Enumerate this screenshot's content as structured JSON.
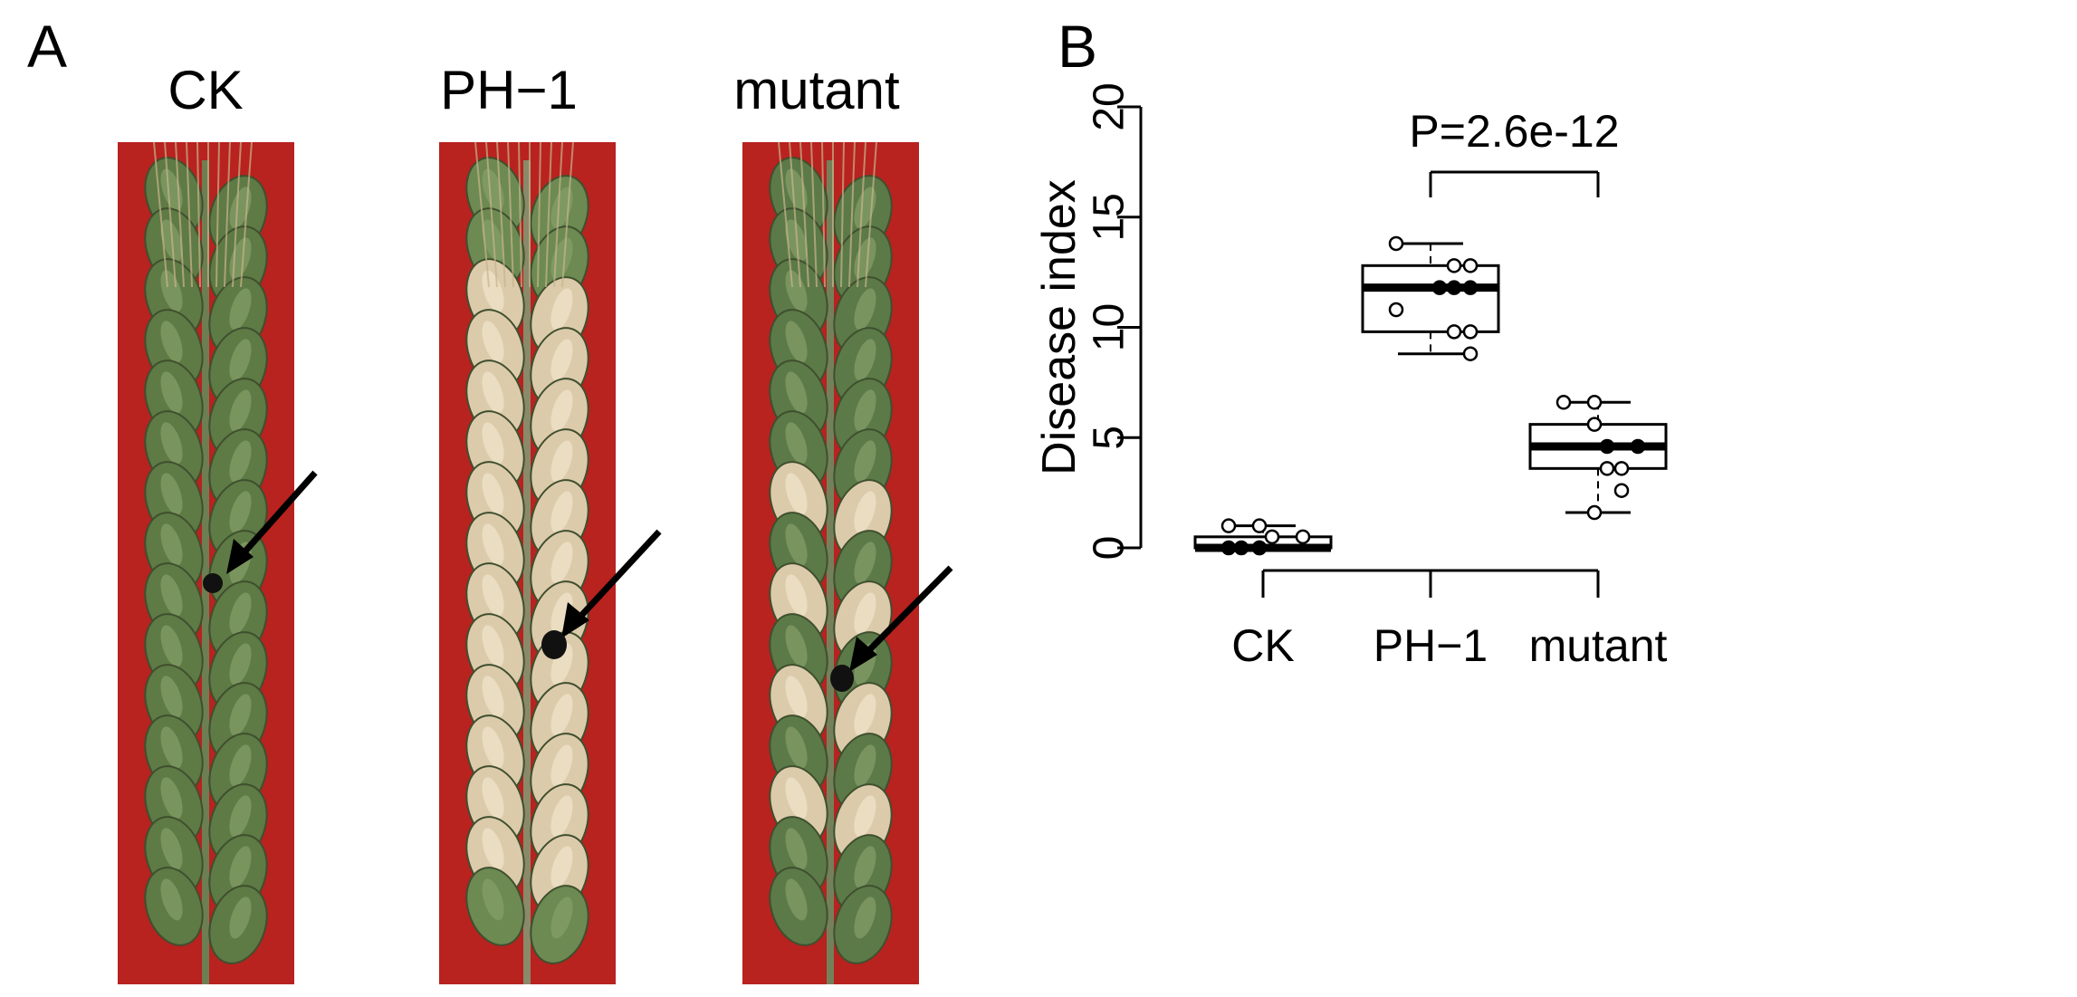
{
  "panels": {
    "a_label": "A",
    "b_label": "B"
  },
  "photos": {
    "labels": [
      "CK",
      "PH−1",
      "mutant"
    ]
  },
  "chart_data": {
    "type": "box",
    "ylabel": "Disease index",
    "xlabel": "",
    "ylim": [
      0,
      20
    ],
    "yticks": [
      0,
      5,
      10,
      15,
      20
    ],
    "grid": false,
    "categories": [
      "CK",
      "PH−1",
      "mutant"
    ],
    "boxes": [
      {
        "name": "CK",
        "min": 0,
        "q1": 0,
        "median": 0,
        "q3": 0.5,
        "max": 1,
        "points": [
          0,
          0,
          0,
          0.5,
          0.5,
          0,
          1,
          1
        ]
      },
      {
        "name": "PH−1",
        "min": 8.8,
        "q1": 9.8,
        "median": 11.8,
        "q3": 12.8,
        "max": 13.8,
        "points": [
          13.8,
          12.8,
          12.8,
          11.8,
          11.8,
          11.8,
          10.8,
          9.8,
          9.8,
          8.8
        ]
      },
      {
        "name": "mutant",
        "min": 1.6,
        "q1": 3.6,
        "median": 4.6,
        "q3": 5.6,
        "max": 6.6,
        "points": [
          6.6,
          6.6,
          5.6,
          4.6,
          4.6,
          3.6,
          3.6,
          2.6,
          1.6
        ]
      }
    ],
    "annotation": {
      "text": "P=2.6e-12",
      "between": [
        "PH−1",
        "mutant"
      ]
    }
  },
  "colors": {
    "background_red": "#b8221f",
    "spike_green": "#5e7a45",
    "spike_pale": "#d9c9a8",
    "ink": "#000000"
  }
}
